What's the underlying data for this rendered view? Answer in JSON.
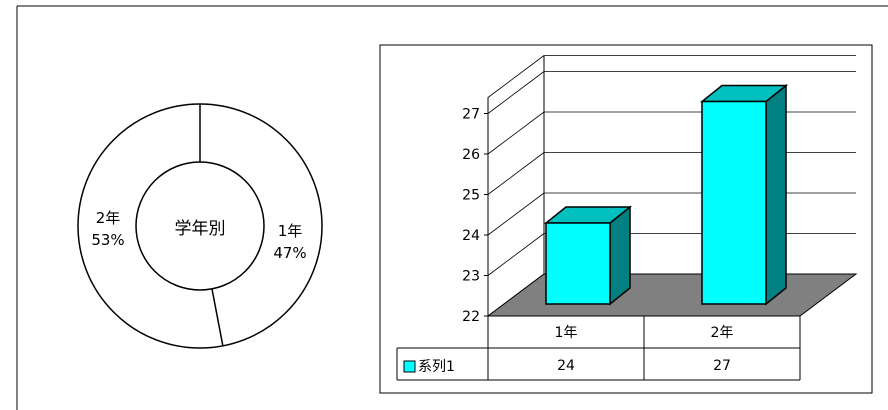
{
  "chart_data": [
    {
      "type": "pie",
      "variant": "doughnut",
      "center_label": "学年別",
      "slices": [
        {
          "label": "1年",
          "value": 47,
          "percent": "47%"
        },
        {
          "label": "2年",
          "value": 53,
          "percent": "53%"
        }
      ],
      "colors": {
        "fill": "#ffffff",
        "stroke": "#000000"
      }
    },
    {
      "type": "bar",
      "variant": "3d-column",
      "categories": [
        "1年",
        "2年"
      ],
      "series": [
        {
          "name": "系列1",
          "values": [
            24,
            27
          ],
          "color": "#00ffff",
          "side_color": "#008080",
          "top_color": "#00c0c0"
        }
      ],
      "ylim": [
        22,
        27
      ],
      "y_ticks": [
        "22",
        "23",
        "24",
        "25",
        "26",
        "27"
      ],
      "grid": true,
      "floor_color": "#808080",
      "data_table": {
        "legend_label": "系列1",
        "values": [
          "24",
          "27"
        ]
      }
    }
  ]
}
